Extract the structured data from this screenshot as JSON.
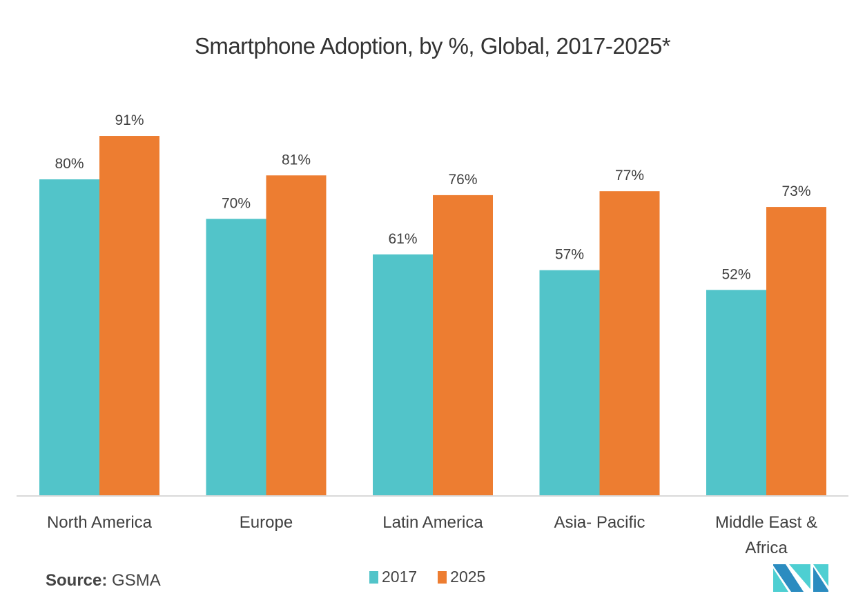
{
  "chart_data": {
    "type": "bar",
    "title": "Smartphone Adoption, by %, Global, 2017-2025*",
    "xlabel": "",
    "ylabel": "",
    "ylim": [
      0,
      100
    ],
    "grid": false,
    "categories": [
      "North America",
      "Europe",
      "Latin America",
      "Asia- Pacific",
      "Middle East & Africa"
    ],
    "category_lines": [
      [
        "North America"
      ],
      [
        "Europe"
      ],
      [
        "Latin America"
      ],
      [
        "Asia- Pacific"
      ],
      [
        "Middle East &",
        "Africa"
      ]
    ],
    "series": [
      {
        "name": "2017",
        "color": "#52C4C9",
        "values": [
          80,
          70,
          61,
          57,
          52
        ],
        "labels": [
          "80%",
          "70%",
          "61%",
          "57%",
          "52%"
        ]
      },
      {
        "name": "2025",
        "color": "#ED7D31",
        "values": [
          91,
          81,
          76,
          77,
          73
        ],
        "labels": [
          "91%",
          "81%",
          "76%",
          "77%",
          "73%"
        ]
      }
    ],
    "legend_position": "bottom-center"
  },
  "source": {
    "label": "Source:",
    "value": "GSMA"
  },
  "logo": {
    "name": "Mordor Intelligence logo",
    "colors": [
      "#2B8CC0",
      "#4ECFD2"
    ]
  },
  "axis_color": "#D9D9D9",
  "label_color": "#404040"
}
